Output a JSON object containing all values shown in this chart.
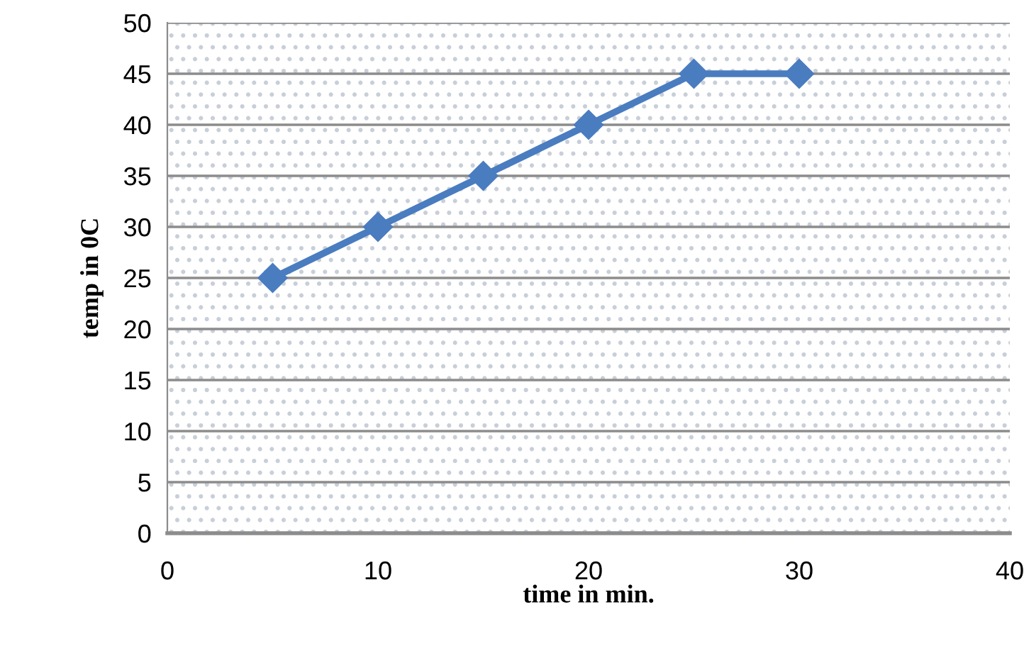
{
  "chart_data": {
    "type": "line",
    "xlabel": "time in min.",
    "ylabel": "temp in 0C",
    "series": [
      {
        "color": "#4a7cc0",
        "x": [
          5,
          10,
          15,
          20,
          25,
          30
        ],
        "values": [
          25,
          30,
          35,
          40,
          45,
          45
        ]
      }
    ],
    "xlim": [
      0,
      40
    ],
    "xticks": [
      0,
      10,
      20,
      30,
      40
    ],
    "ylim": [
      0,
      50
    ],
    "yticks": [
      0,
      5,
      10,
      15,
      20,
      25,
      30,
      35,
      40,
      45,
      50
    ],
    "grid": "y",
    "legend": false,
    "marker": "diamond",
    "line_style": "solid"
  }
}
